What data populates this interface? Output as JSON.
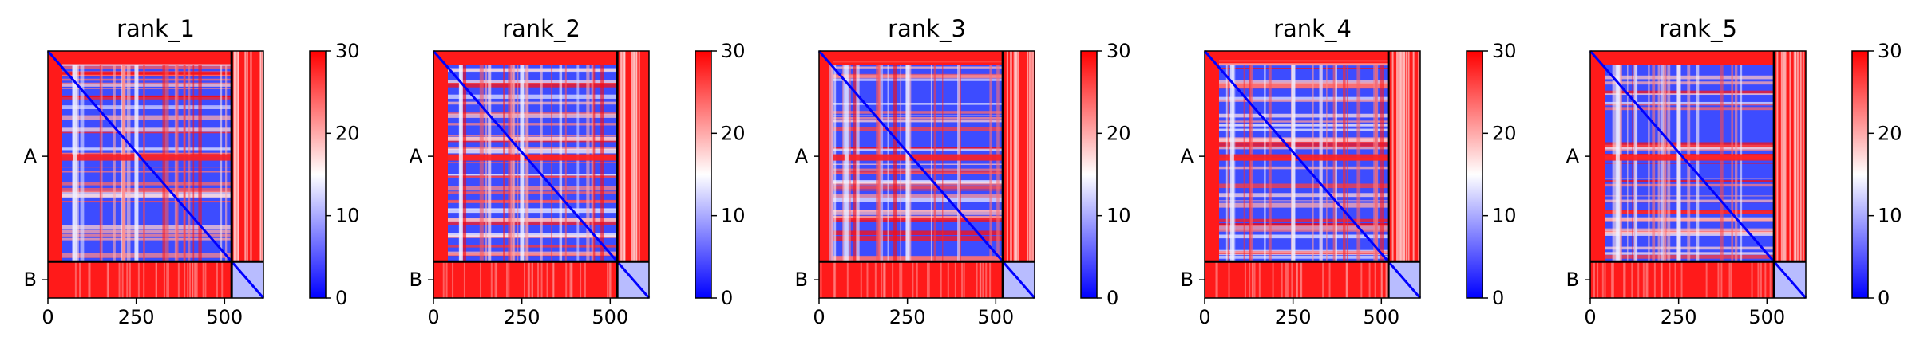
{
  "chart_data": [
    {
      "type": "heatmap",
      "title": "rank_1",
      "xticks": [
        0,
        250,
        500
      ],
      "yticks": [
        "A",
        "B"
      ],
      "colorbar": {
        "min": 0,
        "max": 30,
        "ticks": [
          0,
          10,
          20,
          30
        ]
      },
      "chain_break": 520,
      "length": 610,
      "colormap": [
        "#0000ff",
        "#ffffff",
        "#ff0000"
      ]
    },
    {
      "type": "heatmap",
      "title": "rank_2",
      "xticks": [
        0,
        250,
        500
      ],
      "yticks": [
        "A",
        "B"
      ],
      "colorbar": {
        "min": 0,
        "max": 30,
        "ticks": [
          0,
          10,
          20,
          30
        ]
      },
      "chain_break": 520,
      "length": 610,
      "colormap": [
        "#0000ff",
        "#ffffff",
        "#ff0000"
      ]
    },
    {
      "type": "heatmap",
      "title": "rank_3",
      "xticks": [
        0,
        250,
        500
      ],
      "yticks": [
        "A",
        "B"
      ],
      "colorbar": {
        "min": 0,
        "max": 30,
        "ticks": [
          0,
          10,
          20,
          30
        ]
      },
      "chain_break": 520,
      "length": 610,
      "colormap": [
        "#0000ff",
        "#ffffff",
        "#ff0000"
      ]
    },
    {
      "type": "heatmap",
      "title": "rank_4",
      "xticks": [
        0,
        250,
        500
      ],
      "yticks": [
        "A",
        "B"
      ],
      "colorbar": {
        "min": 0,
        "max": 30,
        "ticks": [
          0,
          10,
          20,
          30
        ]
      },
      "chain_break": 520,
      "length": 610,
      "colormap": [
        "#0000ff",
        "#ffffff",
        "#ff0000"
      ]
    },
    {
      "type": "heatmap",
      "title": "rank_5",
      "xticks": [
        0,
        250,
        500
      ],
      "yticks": [
        "A",
        "B"
      ],
      "colorbar": {
        "min": 0,
        "max": 30,
        "ticks": [
          0,
          10,
          20,
          30
        ]
      },
      "chain_break": 520,
      "length": 610,
      "colormap": [
        "#0000ff",
        "#ffffff",
        "#ff0000"
      ]
    }
  ]
}
